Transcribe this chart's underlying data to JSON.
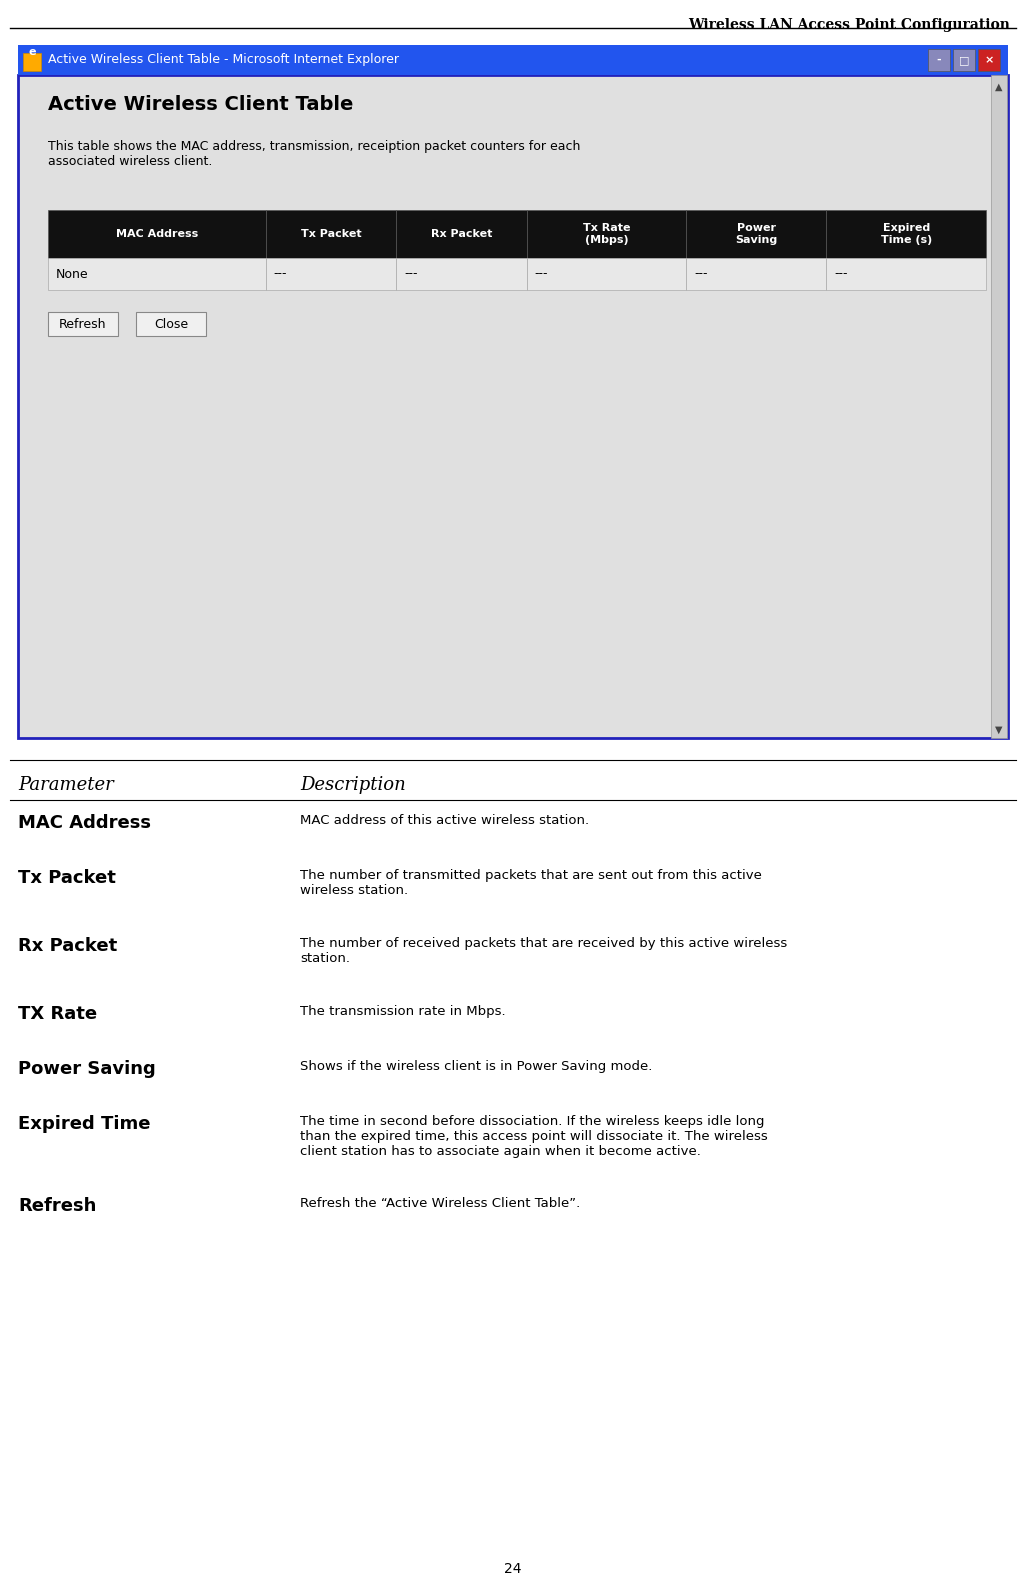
{
  "page_title": "Wireless LAN Access Point Configuration",
  "page_number": "24",
  "browser_title": "Active Wireless Client Table - Microsoft Internet Explorer",
  "dialog_title": "Active Wireless Client Table",
  "dialog_subtitle": "This table shows the MAC address, transmission, receiption packet counters for each\nassociated wireless client.",
  "table_headers": [
    "MAC Address",
    "Tx Packet",
    "Rx Packet",
    "Tx Rate\n(Mbps)",
    "Power\nSaving",
    "Expired\nTime (s)"
  ],
  "table_row": [
    "None",
    "---",
    "---",
    "---",
    "---",
    "---"
  ],
  "buttons": [
    "Refresh",
    "Close"
  ],
  "param_header": "Parameter",
  "desc_header": "Description",
  "params": [
    {
      "name": "MAC Address",
      "desc": "MAC address of this active wireless station."
    },
    {
      "name": "Tx Packet",
      "desc": "The number of transmitted packets that are sent out from this active\nwireless station."
    },
    {
      "name": "Rx Packet",
      "desc": "The number of received packets that are received by this active wireless\nstation."
    },
    {
      "name": "TX Rate",
      "desc": "The transmission rate in Mbps."
    },
    {
      "name": "Power Saving",
      "desc": "Shows if the wireless client is in Power Saving mode."
    },
    {
      "name": "Expired Time",
      "desc": "The time in second before dissociation. If the wireless keeps idle long\nthan the expired time, this access point will dissociate it. The wireless\nclient station has to associate again when it become active."
    },
    {
      "name": "Refresh",
      "desc": "Refresh the “Active Wireless Client Table”."
    }
  ],
  "bg_color": "#ffffff",
  "dialog_bg": "#e0e0e0",
  "dialog_border": "#2222bb",
  "titlebar_color": "#2255ee",
  "titlebar_text_color": "#ffffff",
  "header_row_bg": "#111111",
  "header_row_text": "#ffffff",
  "table_row_bg": "#e8e8e8",
  "table_border": "#888888",
  "scrollbar_bg": "#cccccc",
  "win_btn_min": "#8888bb",
  "win_btn_max": "#8888bb",
  "win_btn_close": "#cc2222"
}
